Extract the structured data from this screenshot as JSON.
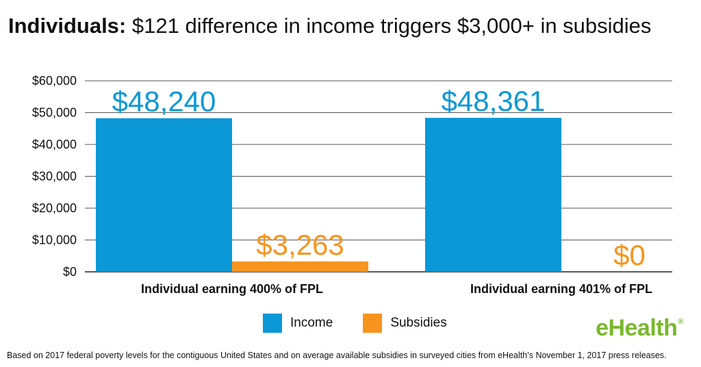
{
  "title": {
    "bold": "Individuals:",
    "rest": "$121 difference in income triggers $3,000+ in subsidies"
  },
  "chart_data": {
    "type": "bar",
    "categories": [
      "Individual earning 400% of FPL",
      "Individual earning 401% of FPL"
    ],
    "series": [
      {
        "name": "Income",
        "values": [
          48240,
          48361
        ],
        "labels": [
          "$48,240",
          "$48,361"
        ],
        "color": "#0a98d6"
      },
      {
        "name": "Subsidies",
        "values": [
          3263,
          0
        ],
        "labels": [
          "$3,263",
          "$0"
        ],
        "color": "#f7941d"
      }
    ],
    "yticks": [
      0,
      10000,
      20000,
      30000,
      40000,
      50000,
      60000
    ],
    "ytick_labels": [
      "$0",
      "$10,000",
      "$20,000",
      "$30,000",
      "$40,000",
      "$50,000",
      "$60,000"
    ],
    "ylim": [
      0,
      60000
    ],
    "grid": true,
    "legend_position": "bottom"
  },
  "logo": {
    "text": "eHealth",
    "mark": "®"
  },
  "footnote": "Based on 2017 federal poverty levels for the contiguous United States and on average available subsidies in surveyed cities from eHealth’s November 1, 2017 press releases."
}
